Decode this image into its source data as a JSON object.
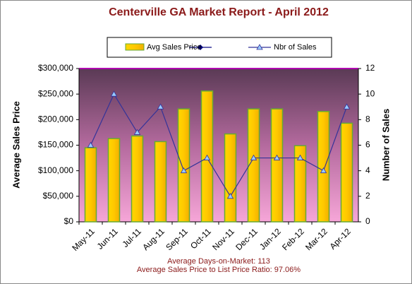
{
  "chart_data": {
    "type": "bar",
    "title": "Centerville GA Market Report - April 2012",
    "categories": [
      "May-11",
      "Jun-11",
      "Jul-11",
      "Aug-11",
      "Sep-11",
      "Oct-11",
      "Nov-11",
      "Dec-11",
      "Jan-12",
      "Feb-12",
      "Mar-12",
      "Apr-12"
    ],
    "series": [
      {
        "name": "Avg Sales Price",
        "type": "bar",
        "color": "#ffcc00",
        "values": [
          145000,
          163000,
          168000,
          157000,
          221000,
          256000,
          172000,
          221000,
          221000,
          149000,
          216000,
          193000
        ]
      },
      {
        "name": "Nbr of Sales",
        "type": "line",
        "axis": "y2",
        "color": "#333399",
        "values": [
          6,
          10,
          7,
          9,
          4,
          5,
          2,
          5,
          5,
          5,
          4,
          9
        ]
      }
    ],
    "ylabel": "Average Sales Price",
    "y2label": "Number of Sales",
    "ylim": [
      0,
      300000
    ],
    "yticks": [
      {
        "value": 0,
        "label": "$0"
      },
      {
        "value": 50000,
        "label": "$50,000"
      },
      {
        "value": 100000,
        "label": "$100,000"
      },
      {
        "value": 150000,
        "label": "$150,000"
      },
      {
        "value": 200000,
        "label": "$200,000"
      },
      {
        "value": 250000,
        "label": "$250,000"
      },
      {
        "value": 300000,
        "label": "$300,000"
      }
    ],
    "y2lim": [
      0,
      12
    ],
    "y2ticks": [
      0,
      2,
      4,
      6,
      8,
      10,
      12
    ],
    "annotations": [
      "Average Days-on-Market: 113",
      "Average Sales Price to List Price Ratio: 97.06%"
    ]
  }
}
